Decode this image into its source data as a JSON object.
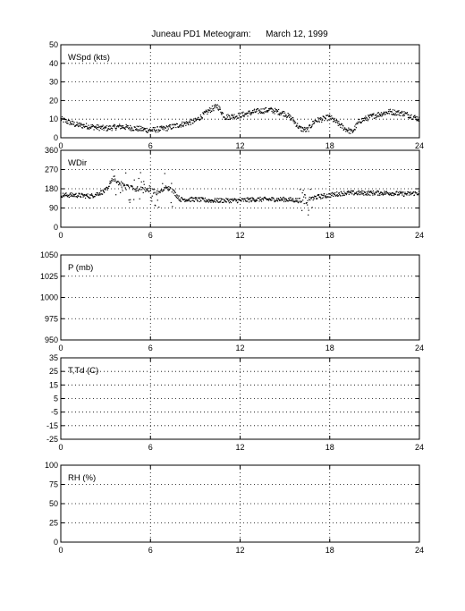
{
  "chart_data": {
    "title": "Juneau PD1 Meteogram:      March 12, 1999",
    "type": "scatter",
    "x_ticks": [
      0,
      6,
      12,
      18,
      24
    ],
    "xlim": [
      0,
      24
    ],
    "grid": true,
    "panels": [
      {
        "label": "WSpd (kts)",
        "ylim": [
          0,
          50
        ],
        "y_ticks": [
          0,
          10,
          20,
          30,
          40,
          50
        ],
        "series": {
          "x": [
            0,
            1,
            2,
            3,
            4,
            5,
            6,
            7,
            8,
            9,
            10,
            10.5,
            11,
            12,
            13,
            14,
            15,
            15.5,
            16,
            16.5,
            17,
            18,
            19,
            19.5,
            20,
            21,
            22,
            23,
            24
          ],
          "y": [
            10,
            7,
            6,
            5,
            6,
            5,
            4,
            5,
            7,
            9,
            15,
            17,
            11,
            12,
            14,
            15,
            13,
            10,
            5,
            4,
            9,
            11,
            5,
            3,
            9,
            12,
            14,
            13,
            10
          ]
        }
      },
      {
        "label": "WDir",
        "ylim": [
          0,
          360
        ],
        "y_ticks": [
          0,
          90,
          180,
          270,
          360
        ],
        "series": {
          "x": [
            0,
            1,
            2,
            3,
            3.5,
            4,
            5,
            6,
            6.5,
            7,
            7.5,
            8,
            9,
            10,
            11,
            12,
            13,
            14,
            15,
            16,
            16.5,
            17,
            18,
            19,
            20,
            21,
            22,
            23,
            24
          ],
          "y": [
            150,
            150,
            145,
            170,
            230,
            200,
            180,
            175,
            160,
            190,
            170,
            130,
            130,
            125,
            125,
            125,
            130,
            130,
            130,
            125,
            115,
            140,
            150,
            160,
            160,
            160,
            160,
            155,
            160
          ]
        }
      },
      {
        "label": "P (mb)",
        "ylim": [
          950,
          1050
        ],
        "y_ticks": [
          950,
          975,
          1000,
          1025,
          1050
        ]
      },
      {
        "label": "T,Td (C)",
        "ylim": [
          -25,
          35
        ],
        "y_ticks": [
          -25,
          -15,
          -5,
          5,
          15,
          25,
          35
        ]
      },
      {
        "label": "RH (%)",
        "ylim": [
          0,
          100
        ],
        "y_ticks": [
          0,
          25,
          50,
          75,
          100
        ]
      }
    ]
  }
}
